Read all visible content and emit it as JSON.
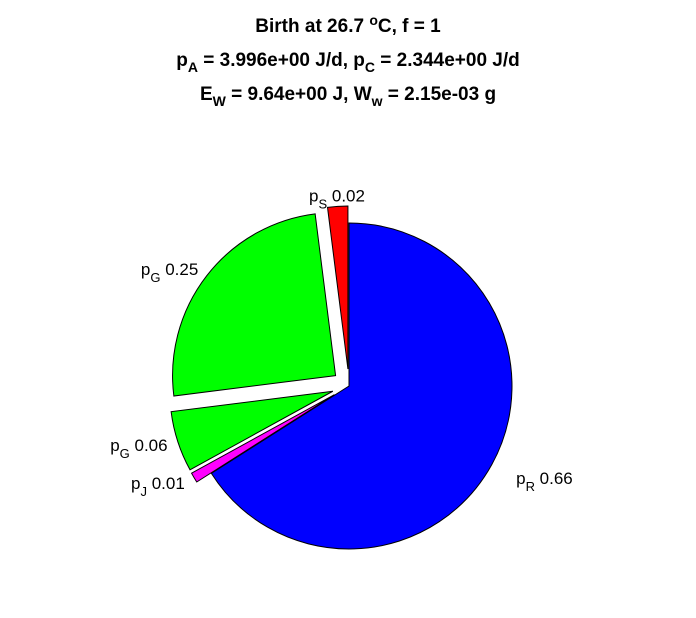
{
  "title": {
    "line1": {
      "pre": "Birth at 26.7 ",
      "sup": "o",
      "post": "C, f = 1"
    },
    "line2": {
      "a_main": "p",
      "a_sub": "A",
      "a_val": " = 3.996e+00 J/d, ",
      "c_main": "p",
      "c_sub": "C",
      "c_val": " = 2.344e+00 J/d"
    },
    "line3": {
      "e_main": "E",
      "e_sub": "W",
      "e_val": " = 9.64e+00 J, ",
      "w_main": "W",
      "w_sub": "w",
      "w_val": " = 2.15e-03 g"
    }
  },
  "chart_data": {
    "type": "pie",
    "start_angle_deg": 90,
    "direction": "clockwise",
    "slices": [
      {
        "id": "pR",
        "base": "p",
        "sub": "R",
        "value": 0.66,
        "color": "#0000ff",
        "exploded": false
      },
      {
        "id": "pJ",
        "base": "p",
        "sub": "J",
        "value": 0.01,
        "color": "#ff00ff",
        "exploded": true
      },
      {
        "id": "pG1",
        "base": "p",
        "sub": "G",
        "value": 0.06,
        "color": "#00ff00",
        "exploded": true
      },
      {
        "id": "pG2",
        "base": "p",
        "sub": "G",
        "value": 0.25,
        "color": "#00ff00",
        "exploded": true
      },
      {
        "id": "pS",
        "base": "p",
        "sub": "S",
        "value": 0.02,
        "color": "#ff0000",
        "exploded": true
      }
    ]
  }
}
